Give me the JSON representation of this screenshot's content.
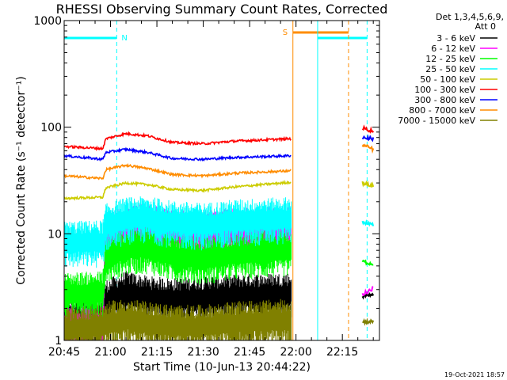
{
  "chart_data": {
    "type": "line",
    "title": "RHESSI Observing Summary Count Rates, Corrected",
    "xlabel": "Start Time (10-Jun-13 20:44:22)",
    "ylabel": "Corrected Count Rate (s⁻¹ detector⁻¹)",
    "yscale": "log",
    "ylim": [
      1,
      1000
    ],
    "xlim_minutes_after_20_45": [
      0,
      100
    ],
    "grid": false,
    "legend_placement": "right",
    "x_ticks": [
      "20:45",
      "21:00",
      "21:15",
      "21:30",
      "21:45",
      "22:00",
      "22:15"
    ],
    "x_tick_minutes": [
      0,
      15,
      30,
      45,
      60,
      75,
      90
    ],
    "y_ticks": [
      "1",
      "10",
      "100",
      "1000"
    ],
    "y_tick_values": [
      1,
      10,
      100,
      1000
    ],
    "legend_header": [
      "Det 1,3,4,5,6,9,",
      "Att 0"
    ],
    "x_minutes": [
      0,
      12.5,
      13.5,
      20,
      27,
      35,
      45,
      55,
      73.5
    ],
    "series": [
      {
        "name": "3 - 6 keV",
        "color": "#000000",
        "style": "noisy",
        "values": [
          1.6,
          1.7,
          2.4,
          2.9,
          2.6,
          2.5,
          2.6,
          2.7,
          2.8
        ]
      },
      {
        "name": "6 - 12 keV",
        "color": "#ff00ff",
        "style": "noisy",
        "values": [
          1.4,
          1.5,
          10.2,
          12.0,
          12.4,
          11.0,
          10.6,
          11.2,
          12.0
        ]
      },
      {
        "name": "12 - 25 keV",
        "color": "#00ff00",
        "style": "noisy",
        "values": [
          2.8,
          2.9,
          6.0,
          7.4,
          7.6,
          6.4,
          6.0,
          6.6,
          7.2
        ]
      },
      {
        "name": "25 - 50 keV",
        "color": "#00ffff",
        "style": "noisy",
        "values": [
          8.5,
          8.7,
          12.4,
          14.2,
          14.6,
          13.2,
          12.6,
          13.6,
          14.4
        ]
      },
      {
        "name": "50 - 100 keV",
        "color": "#cccc00",
        "style": "line",
        "values": [
          21.5,
          22.0,
          27.0,
          30.0,
          29.0,
          26.0,
          25.5,
          27.5,
          30.5
        ]
      },
      {
        "name": "100 - 300 keV",
        "color": "#ff0000",
        "style": "line",
        "values": [
          66.0,
          63.0,
          78.0,
          87.0,
          83.0,
          72.0,
          70.0,
          74.0,
          78.0
        ]
      },
      {
        "name": "300 - 800 keV",
        "color": "#0000ff",
        "style": "line",
        "values": [
          54.0,
          50.0,
          58.0,
          62.0,
          58.0,
          51.0,
          50.0,
          52.0,
          54.0
        ]
      },
      {
        "name": "800 - 7000 keV",
        "color": "#ff8c00",
        "style": "line",
        "values": [
          35.0,
          33.0,
          40.0,
          44.0,
          41.0,
          36.0,
          35.0,
          37.0,
          39.0
        ]
      },
      {
        "name": "7000 - 15000 keV",
        "color": "#808000",
        "style": "noisy",
        "values": [
          1.3,
          1.4,
          1.5,
          1.6,
          1.5,
          1.4,
          1.4,
          1.5,
          1.6
        ]
      }
    ],
    "post_gap": {
      "x_minutes": [
        96.5,
        100
      ],
      "values": {
        "3 - 6 keV": [
          2.6,
          2.7
        ],
        "6 - 12 keV": [
          2.7,
          3.1
        ],
        "12 - 25 keV": [
          5.5,
          5.2
        ],
        "25 - 50 keV": [
          13.0,
          12.0
        ],
        "50 - 100 keV": [
          30.0,
          28.0
        ],
        "100 - 300 keV": [
          98.0,
          92.0
        ],
        "300 - 800 keV": [
          80.0,
          78.0
        ],
        "800 - 7000 keV": [
          68.0,
          62.0
        ],
        "7000 - 15000 keV": [
          1.5,
          1.5
        ]
      }
    },
    "night_bars": [
      {
        "start": 0,
        "end": 17,
        "label": "N",
        "color": "#00ffff"
      },
      {
        "start": 82,
        "end": 98,
        "label": "",
        "color": "#00ffff"
      }
    ],
    "saa_bars": [
      {
        "start": 74,
        "end": 92,
        "label": "S",
        "color": "#ff8c00"
      }
    ],
    "vlines": [
      {
        "x": 17,
        "color": "#00ffff",
        "dashed": true
      },
      {
        "x": 74,
        "color": "#ff8c00",
        "dashed": false
      },
      {
        "x": 82,
        "color": "#00ffff",
        "dashed": false
      },
      {
        "x": 92,
        "color": "#ff8c00",
        "dashed": true
      },
      {
        "x": 98,
        "color": "#00ffff",
        "dashed": true
      }
    ],
    "footer_date": "19-Oct-2021 18:57"
  }
}
